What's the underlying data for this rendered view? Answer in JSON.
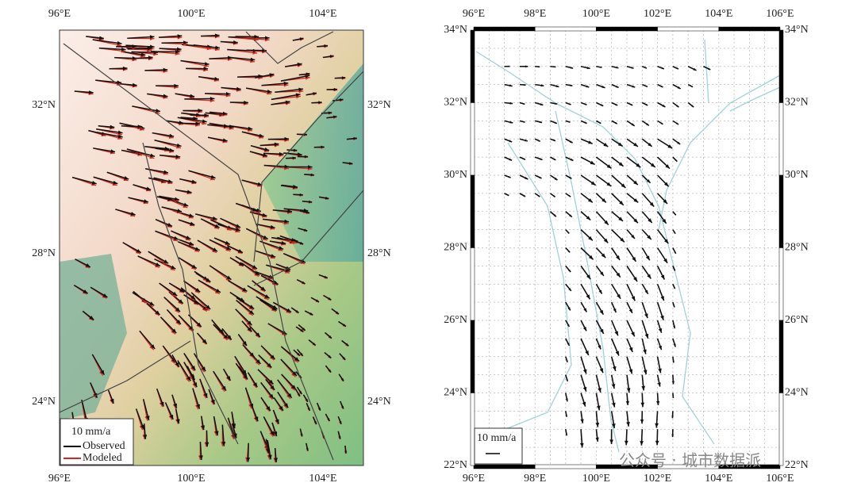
{
  "left_map": {
    "x_labels": [
      "96°E",
      "100°E",
      "104°E"
    ],
    "y_labels": [
      "32°N",
      "28°N",
      "24°N"
    ],
    "legend": {
      "scale": "10 mm/a",
      "observed": "Observed",
      "modeled": "Modeled"
    }
  },
  "right_map": {
    "x_labels": [
      "96°E",
      "98°E",
      "100°E",
      "102°E",
      "104°E",
      "106°E"
    ],
    "y_labels": [
      "34°N",
      "32°N",
      "30°N",
      "28°N",
      "26°N",
      "24°N",
      "22°N"
    ],
    "legend": {
      "scale": "10 mm/a"
    }
  },
  "watermark": "公众号 · 城市数据派"
}
